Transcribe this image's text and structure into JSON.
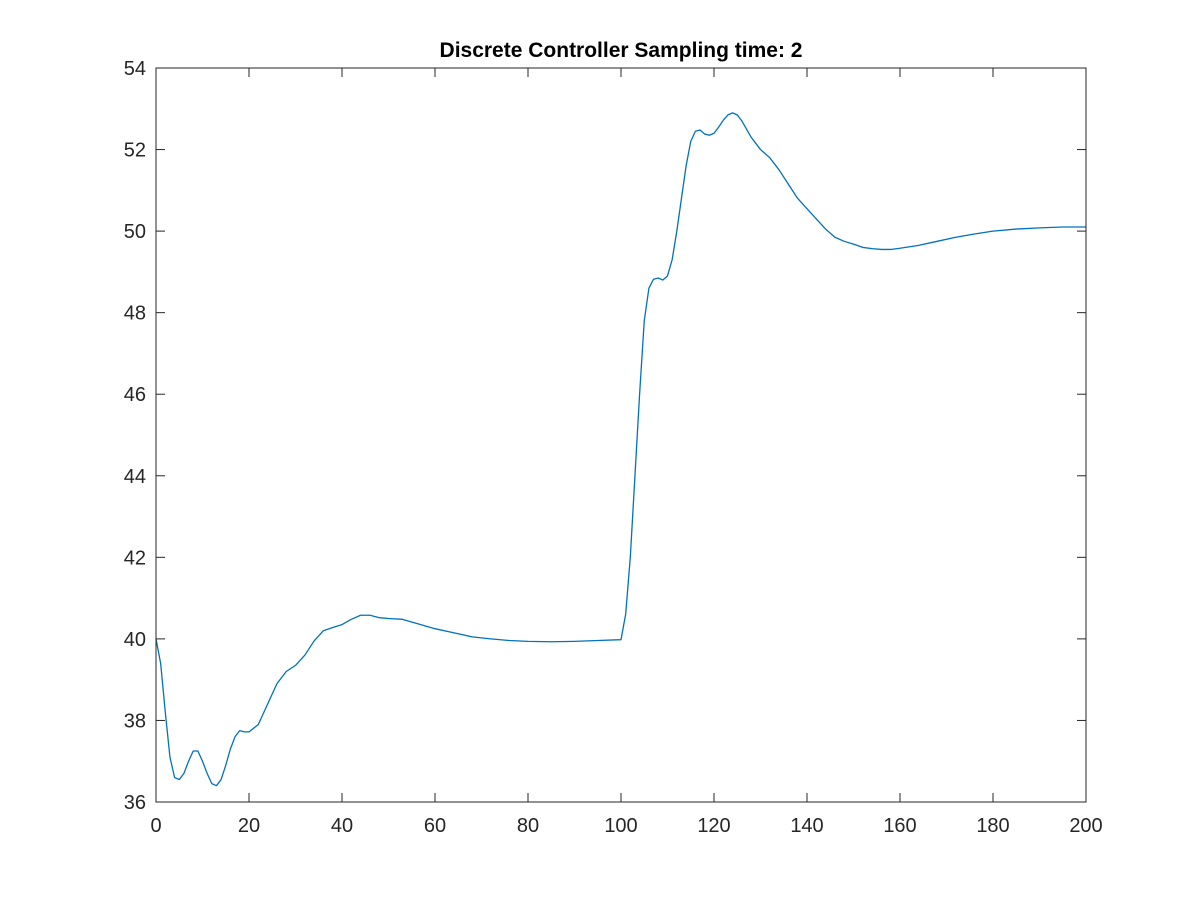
{
  "chart_data": {
    "type": "line",
    "title": "Discrete Controller Sampling time: 2",
    "xlabel": "",
    "ylabel": "",
    "xlim": [
      0,
      200
    ],
    "ylim": [
      36,
      54
    ],
    "xticks": [
      0,
      20,
      40,
      60,
      80,
      100,
      120,
      140,
      160,
      180,
      200
    ],
    "yticks": [
      36,
      38,
      40,
      42,
      44,
      46,
      48,
      50,
      52,
      54
    ],
    "grid": false,
    "legend": "none",
    "line_color": "#0072bd",
    "series": [
      {
        "x": [
          0,
          1,
          2,
          3,
          4,
          5,
          6,
          7,
          8,
          9,
          10,
          11,
          12,
          13,
          14,
          15,
          16,
          17,
          18,
          19,
          20,
          22,
          24,
          26,
          28,
          30,
          32,
          34,
          36,
          38,
          40,
          42,
          44,
          46,
          48,
          50,
          53,
          56,
          60,
          64,
          68,
          72,
          76,
          80,
          85,
          90,
          95,
          100,
          101,
          102,
          103,
          104,
          105,
          106,
          107,
          108,
          109,
          110,
          111,
          112,
          113,
          114,
          115,
          116,
          117,
          118,
          119,
          120,
          121,
          122,
          123,
          124,
          125,
          126,
          127,
          128,
          130,
          132,
          134,
          136,
          138,
          140,
          142,
          144,
          146,
          148,
          150,
          152,
          154,
          156,
          158,
          160,
          164,
          168,
          172,
          176,
          180,
          185,
          190,
          195,
          200
        ],
        "y": [
          40.0,
          39.4,
          38.2,
          37.1,
          36.6,
          36.55,
          36.7,
          37.0,
          37.25,
          37.25,
          37.0,
          36.7,
          36.45,
          36.4,
          36.55,
          36.9,
          37.3,
          37.6,
          37.75,
          37.72,
          37.72,
          37.9,
          38.4,
          38.9,
          39.2,
          39.35,
          39.6,
          39.95,
          40.2,
          40.28,
          40.35,
          40.48,
          40.58,
          40.58,
          40.52,
          40.5,
          40.48,
          40.38,
          40.25,
          40.15,
          40.05,
          40.0,
          39.96,
          39.94,
          39.93,
          39.94,
          39.96,
          39.98,
          40.6,
          42.0,
          44.0,
          46.0,
          47.8,
          48.6,
          48.82,
          48.85,
          48.8,
          48.9,
          49.3,
          50.0,
          50.8,
          51.6,
          52.2,
          52.45,
          52.48,
          52.38,
          52.35,
          52.4,
          52.55,
          52.72,
          52.85,
          52.9,
          52.85,
          52.7,
          52.5,
          52.3,
          52.0,
          51.8,
          51.5,
          51.15,
          50.8,
          50.55,
          50.3,
          50.05,
          49.85,
          49.75,
          49.68,
          49.6,
          49.57,
          49.55,
          49.55,
          49.58,
          49.65,
          49.75,
          49.85,
          49.93,
          50.0,
          50.05,
          50.08,
          50.1,
          50.1
        ]
      }
    ]
  }
}
